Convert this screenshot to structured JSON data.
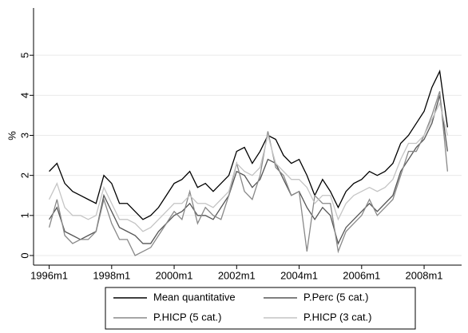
{
  "chart_data": {
    "type": "line",
    "y_label": "%",
    "x": [
      1996,
      1996.25,
      1996.5,
      1996.75,
      1997,
      1997.25,
      1997.5,
      1997.75,
      1998,
      1998.25,
      1998.5,
      1998.75,
      1999,
      1999.25,
      1999.5,
      1999.75,
      2000,
      2000.25,
      2000.5,
      2000.75,
      2001,
      2001.25,
      2001.5,
      2001.75,
      2002,
      2002.25,
      2002.5,
      2002.75,
      2003,
      2003.25,
      2003.5,
      2003.75,
      2004,
      2004.25,
      2004.5,
      2004.75,
      2005,
      2005.25,
      2005.5,
      2005.75,
      2006,
      2006.25,
      2006.5,
      2006.75,
      2007,
      2007.25,
      2007.5,
      2007.75,
      2008,
      2008.25,
      2008.5,
      2008.75
    ],
    "series": [
      {
        "name": "Mean quantitative",
        "color": "#000000",
        "values": [
          2.1,
          2.3,
          1.8,
          1.6,
          1.5,
          1.4,
          1.3,
          2.0,
          1.8,
          1.3,
          1.3,
          1.1,
          0.9,
          1.0,
          1.2,
          1.5,
          1.8,
          1.9,
          2.1,
          1.7,
          1.8,
          1.6,
          1.8,
          2.0,
          2.6,
          2.7,
          2.3,
          2.6,
          3.0,
          2.9,
          2.5,
          2.3,
          2.4,
          2.0,
          1.5,
          1.9,
          1.6,
          1.2,
          1.6,
          1.8,
          1.9,
          2.1,
          2.0,
          2.1,
          2.3,
          2.8,
          3.0,
          3.3,
          3.6,
          4.2,
          4.6,
          3.2
        ]
      },
      {
        "name": "P.Perc (5 cat.)",
        "color": "#555555",
        "values": [
          0.9,
          1.2,
          0.6,
          0.5,
          0.4,
          0.5,
          0.6,
          1.5,
          1.1,
          0.7,
          0.6,
          0.5,
          0.3,
          0.3,
          0.6,
          0.8,
          1.0,
          1.1,
          1.3,
          1.0,
          1.0,
          0.9,
          1.2,
          1.5,
          2.1,
          2.0,
          1.7,
          1.9,
          2.4,
          2.3,
          1.9,
          1.5,
          1.6,
          1.2,
          0.9,
          1.2,
          1.0,
          0.3,
          0.7,
          0.9,
          1.1,
          1.3,
          1.1,
          1.3,
          1.5,
          2.1,
          2.4,
          2.7,
          2.9,
          3.3,
          4.0,
          2.6
        ]
      },
      {
        "name": "P.HICP (5 cat.)",
        "color": "#888888",
        "values": [
          0.7,
          1.4,
          0.5,
          0.3,
          0.4,
          0.4,
          0.6,
          1.4,
          0.8,
          0.4,
          0.4,
          0.0,
          0.1,
          0.2,
          0.5,
          0.8,
          1.1,
          0.9,
          1.6,
          0.8,
          1.2,
          1.0,
          0.9,
          1.5,
          2.3,
          1.6,
          1.4,
          2.0,
          3.1,
          2.2,
          2.0,
          1.5,
          1.6,
          0.1,
          1.5,
          1.3,
          1.3,
          0.1,
          0.6,
          0.8,
          1.0,
          1.4,
          1.0,
          1.2,
          1.4,
          2.0,
          2.6,
          2.6,
          3.0,
          3.5,
          4.1,
          2.1
        ]
      },
      {
        "name": "P.HICP (3 cat.)",
        "color": "#c4c4c4",
        "values": [
          1.4,
          1.8,
          1.2,
          1.0,
          1.0,
          0.9,
          1.0,
          1.7,
          1.3,
          0.9,
          0.9,
          0.8,
          0.6,
          0.7,
          0.9,
          1.1,
          1.3,
          1.3,
          1.5,
          1.3,
          1.3,
          1.2,
          1.4,
          1.6,
          2.3,
          2.1,
          2.0,
          2.2,
          3.0,
          2.3,
          2.1,
          1.9,
          1.9,
          1.7,
          1.3,
          1.5,
          1.5,
          0.9,
          1.3,
          1.5,
          1.6,
          1.7,
          1.6,
          1.7,
          1.9,
          2.4,
          2.8,
          2.8,
          3.0,
          3.4,
          3.8,
          3.0
        ]
      }
    ],
    "xlim": [
      1995.5,
      2009.2
    ],
    "xticks": [
      {
        "value": 1996,
        "label": "1996m1"
      },
      {
        "value": 1998,
        "label": "1998m1"
      },
      {
        "value": 2000,
        "label": "2000m1"
      },
      {
        "value": 2002,
        "label": "2002m1"
      },
      {
        "value": 2004,
        "label": "2004m1"
      },
      {
        "value": 2006,
        "label": "2006m1"
      },
      {
        "value": 2008,
        "label": "2008m1"
      }
    ],
    "ylim": [
      -0.24,
      6.18
    ],
    "yticks": [
      0,
      1,
      2,
      3,
      4,
      5
    ],
    "grid": true,
    "legend": "bottom"
  }
}
